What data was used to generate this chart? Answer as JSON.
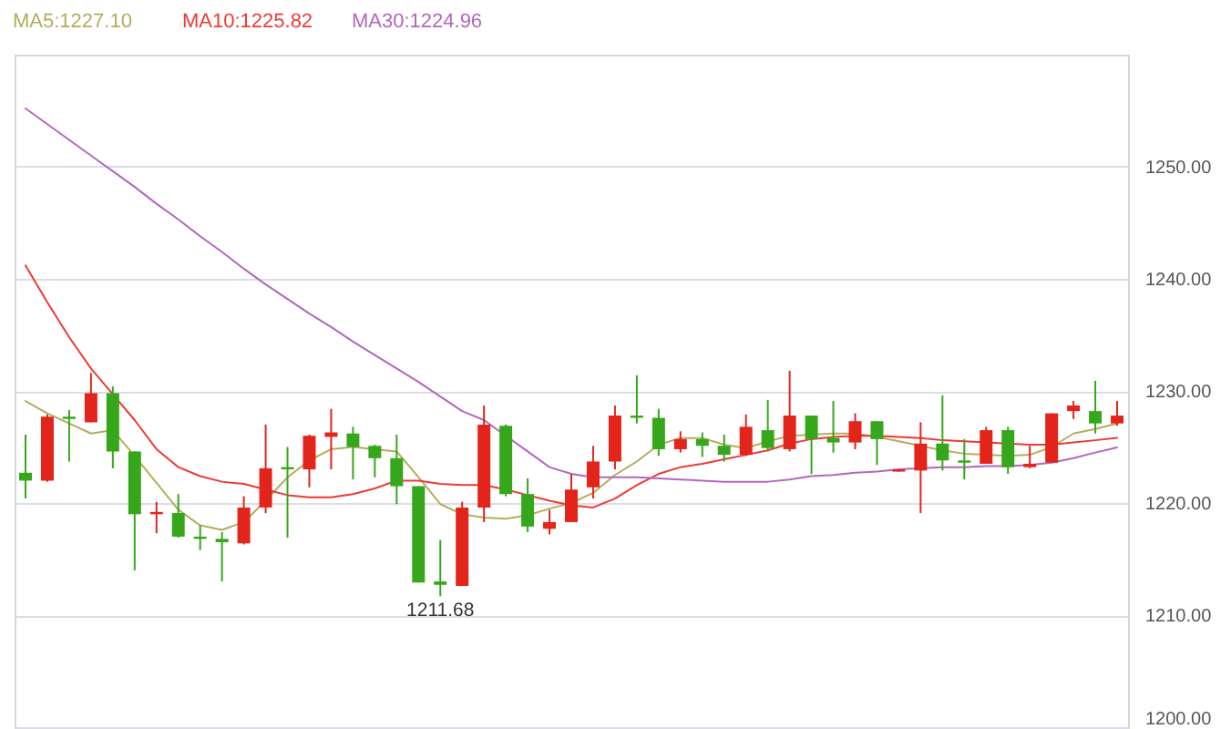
{
  "chart_data": {
    "type": "candlestick",
    "categories": [
      null,
      null,
      null,
      null,
      null,
      null,
      null,
      null,
      null,
      null,
      null,
      null,
      null,
      null,
      null,
      null,
      null,
      null,
      null,
      null,
      null,
      null,
      null,
      null,
      null,
      null,
      null,
      null,
      null,
      null,
      null,
      null,
      null,
      null,
      null,
      null,
      null,
      null,
      null,
      null,
      null,
      null,
      null,
      null,
      null,
      null,
      null,
      null,
      null,
      null,
      null
    ],
    "ohlc": [
      [
        1222.7,
        1226.1,
        1220.4,
        1222.0
      ],
      [
        1222.0,
        1227.9,
        1221.9,
        1227.7
      ],
      [
        1227.7,
        1228.3,
        1223.7,
        1227.5
      ],
      [
        1227.2,
        1231.6,
        1227.2,
        1229.8
      ],
      [
        1229.8,
        1230.4,
        1223.1,
        1224.6
      ],
      [
        1224.6,
        1224.6,
        1214.0,
        1219.0
      ],
      [
        1219.0,
        1220.1,
        1217.3,
        1219.2
      ],
      [
        1219.1,
        1220.8,
        1216.9,
        1217.0
      ],
      [
        1217.0,
        1218.0,
        1215.8,
        1216.8
      ],
      [
        1216.8,
        1217.4,
        1213.0,
        1216.5
      ],
      [
        1216.4,
        1220.6,
        1216.3,
        1219.6
      ],
      [
        1219.6,
        1227.0,
        1219.1,
        1223.1
      ],
      [
        1223.2,
        1225.0,
        1216.9,
        1223.0
      ],
      [
        1223.0,
        1226.1,
        1221.4,
        1226.0
      ],
      [
        1225.9,
        1228.4,
        1223.0,
        1226.3
      ],
      [
        1226.2,
        1226.8,
        1222.1,
        1225.0
      ],
      [
        1225.1,
        1225.2,
        1222.3,
        1224.0
      ],
      [
        1224.0,
        1226.1,
        1219.9,
        1221.5
      ],
      [
        1221.5,
        1221.5,
        1212.9,
        1212.9
      ],
      [
        1213.0,
        1216.7,
        1211.68,
        1212.7
      ],
      [
        1212.6,
        1220.1,
        1212.6,
        1219.6
      ],
      [
        1219.6,
        1228.7,
        1218.3,
        1227.0
      ],
      [
        1226.9,
        1227.0,
        1220.6,
        1220.8
      ],
      [
        1220.8,
        1222.2,
        1217.4,
        1217.9
      ],
      [
        1217.7,
        1219.4,
        1217.2,
        1218.3
      ],
      [
        1218.3,
        1222.6,
        1218.3,
        1221.2
      ],
      [
        1221.4,
        1225.1,
        1220.4,
        1223.7
      ],
      [
        1223.7,
        1228.7,
        1223.0,
        1227.8
      ],
      [
        1227.8,
        1231.4,
        1227.1,
        1227.6
      ],
      [
        1227.6,
        1228.4,
        1224.2,
        1224.8
      ],
      [
        1224.8,
        1226.4,
        1224.5,
        1225.7
      ],
      [
        1225.7,
        1226.3,
        1224.1,
        1225.1
      ],
      [
        1225.1,
        1226.1,
        1223.7,
        1224.3
      ],
      [
        1224.3,
        1227.9,
        1224.2,
        1226.8
      ],
      [
        1226.5,
        1229.2,
        1224.6,
        1224.9
      ],
      [
        1224.8,
        1231.8,
        1224.6,
        1227.8
      ],
      [
        1227.8,
        1227.8,
        1222.6,
        1225.7
      ],
      [
        1225.8,
        1229.1,
        1224.5,
        1225.4
      ],
      [
        1225.4,
        1228.0,
        1224.8,
        1227.3
      ],
      [
        1227.3,
        1227.3,
        1223.4,
        1225.7
      ],
      [
        1222.8,
        1223.0,
        1222.8,
        1223.0
      ],
      [
        1222.9,
        1227.2,
        1219.1,
        1225.3
      ],
      [
        1225.3,
        1229.6,
        1222.9,
        1223.8
      ],
      [
        1223.8,
        1225.7,
        1222.1,
        1223.6
      ],
      [
        1223.5,
        1226.8,
        1223.5,
        1226.5
      ],
      [
        1226.5,
        1226.8,
        1222.6,
        1223.2
      ],
      [
        1223.2,
        1225.1,
        1223.1,
        1223.5
      ],
      [
        1223.6,
        1228.0,
        1223.6,
        1228.0
      ],
      [
        1228.2,
        1229.1,
        1227.5,
        1228.7
      ],
      [
        1228.2,
        1230.9,
        1226.2,
        1227.1
      ],
      [
        1227.1,
        1229.1,
        1226.9,
        1227.8
      ]
    ],
    "colors": [
      "#36a71c",
      "#e3241b",
      "#36a71c",
      "#e3241b",
      "#36a71c",
      "#36a71c",
      "#e3241b",
      "#36a71c",
      "#36a71c",
      "#36a71c",
      "#e3241b",
      "#e3241b",
      "#36a71c",
      "#e3241b",
      "#e3241b",
      "#36a71c",
      "#36a71c",
      "#36a71c",
      "#36a71c",
      "#36a71c",
      "#e3241b",
      "#e3241b",
      "#36a71c",
      "#36a71c",
      "#e3241b",
      "#e3241b",
      "#e3241b",
      "#e3241b",
      "#36a71c",
      "#36a71c",
      "#e3241b",
      "#36a71c",
      "#36a71c",
      "#e3241b",
      "#36a71c",
      "#e3241b",
      "#36a71c",
      "#36a71c",
      "#e3241b",
      "#36a71c",
      "#e3241b",
      "#e3241b",
      "#36a71c",
      "#36a71c",
      "#e3241b",
      "#36a71c",
      "#e3241b",
      "#e3241b",
      "#e3241b",
      "#36a71c",
      "#e3241b"
    ],
    "series": [
      {
        "type": "line",
        "name": "MA5:1227.10",
        "color": "#b4ad5e",
        "values": [
          1229.1,
          1228.0,
          1227.1,
          1226.2,
          1226.5,
          1224.2,
          1221.8,
          1219.4,
          1218.0,
          1217.6,
          1218.3,
          1220.2,
          1222.3,
          1223.8,
          1224.8,
          1225.0,
          1224.8,
          1224.6,
          1222.3,
          1219.9,
          1219.0,
          1218.7,
          1218.6,
          1218.9,
          1219.5,
          1220.0,
          1220.9,
          1222.5,
          1223.7,
          1225.2,
          1225.8,
          1225.8,
          1225.2,
          1224.9,
          1225.5,
          1226.0,
          1226.1,
          1226.2,
          1226.2,
          1225.9,
          1225.5,
          1225.1,
          1224.7,
          1224.4,
          1224.3,
          1224.2,
          1224.3,
          1225.0,
          1226.2,
          1226.6,
          1227.1
        ]
      },
      {
        "type": "line",
        "name": "MA10:1225.82",
        "color": "#ee3a34",
        "values": [
          1241.2,
          1237.9,
          1234.8,
          1232.0,
          1229.7,
          1227.4,
          1224.8,
          1223.2,
          1222.4,
          1221.9,
          1221.7,
          1221.2,
          1220.7,
          1220.5,
          1220.5,
          1220.8,
          1221.3,
          1222.0,
          1222.0,
          1221.7,
          1221.6,
          1221.6,
          1221.2,
          1220.7,
          1220.2,
          1219.8,
          1219.6,
          1220.4,
          1221.6,
          1222.6,
          1223.2,
          1223.5,
          1223.9,
          1224.3,
          1224.7,
          1225.3,
          1225.7,
          1225.9,
          1226.0,
          1226.0,
          1225.9,
          1225.8,
          1225.6,
          1225.5,
          1225.4,
          1225.3,
          1225.2,
          1225.2,
          1225.4,
          1225.6,
          1225.82
        ]
      },
      {
        "type": "line",
        "name": "MA30:1224.96",
        "color": "#b466bf",
        "values": [
          1255.2,
          1253.8,
          1252.4,
          1251.0,
          1249.6,
          1248.2,
          1246.7,
          1245.3,
          1243.8,
          1242.4,
          1240.9,
          1239.5,
          1238.2,
          1236.9,
          1235.7,
          1234.4,
          1233.2,
          1232.0,
          1230.8,
          1229.5,
          1228.2,
          1227.4,
          1226.0,
          1224.6,
          1223.2,
          1222.6,
          1222.3,
          1222.3,
          1222.3,
          1222.2,
          1222.1,
          1222.0,
          1221.9,
          1221.9,
          1221.9,
          1222.1,
          1222.4,
          1222.5,
          1222.7,
          1222.8,
          1223.0,
          1223.1,
          1223.2,
          1223.2,
          1223.3,
          1223.3,
          1223.4,
          1223.6,
          1224.0,
          1224.5,
          1224.96
        ]
      }
    ],
    "ylim": [
      1200,
      1260
    ],
    "yticks": [
      {
        "value": 1200,
        "label": "1200.00"
      },
      {
        "value": 1210,
        "label": "1210.00"
      },
      {
        "value": 1220,
        "label": "1220.00"
      },
      {
        "value": 1230,
        "label": "1230.00"
      },
      {
        "value": 1240,
        "label": "1240.00"
      },
      {
        "value": 1250,
        "label": "1250.00"
      }
    ],
    "grid": "y",
    "tick_labels": "y",
    "legend": "top left",
    "annotations": [
      {
        "text": "1211.68",
        "y": 1211.68
      }
    ]
  }
}
